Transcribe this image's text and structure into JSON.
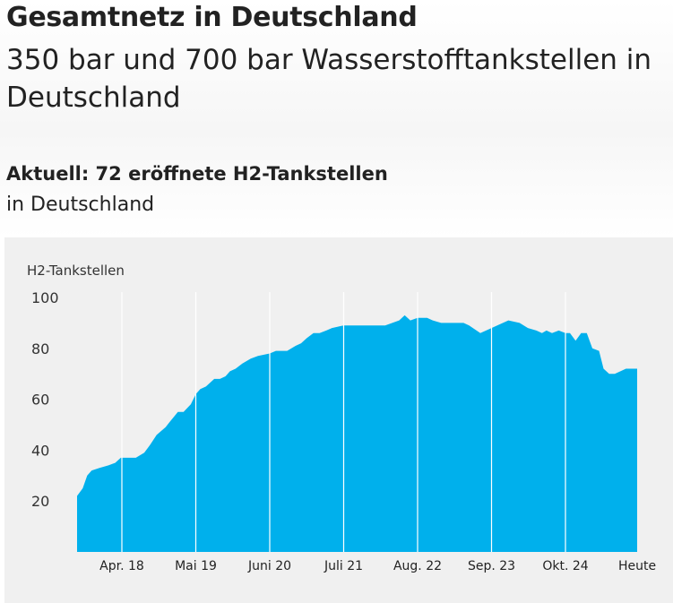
{
  "header": {
    "title": "Gesamtnetz in Deutschland",
    "subtitle": "350 bar und 700 bar Wasserstofftankstellen in Deutschland"
  },
  "stat": {
    "headline": "Aktuell: 72 eröffnete H2-Tankstellen",
    "sub": "in Deutschland"
  },
  "chart_data": {
    "type": "area",
    "ylabel": "H2-Tankstellen",
    "yticks": [
      20,
      40,
      60,
      80,
      100
    ],
    "ylim": [
      0,
      100
    ],
    "xlim": [
      0,
      100
    ],
    "categories": [
      "Apr. 18",
      "Mai 19",
      "Juni 20",
      "Juli 21",
      "Aug. 22",
      "Sep. 23",
      "Okt. 24",
      "Heute"
    ],
    "category_positions": [
      8.0,
      21.2,
      34.4,
      47.6,
      60.8,
      74.0,
      87.2,
      100
    ],
    "grid": "vertical",
    "color": "#00b0ec",
    "series": [
      {
        "x": [
          0,
          1.0,
          1.8,
          2.6,
          4.0,
          5.6,
          6.8,
          7.8,
          8.5,
          9.5,
          10.5,
          12.0,
          13.0,
          14.2,
          15.8,
          16.5,
          18.0,
          19.0,
          20.3,
          21.2,
          22.0,
          23.0,
          24.5,
          25.5,
          26.5,
          27.3,
          28.3,
          29.5,
          31.0,
          32.3,
          34.4,
          35.5,
          37.5,
          39.0,
          40.0,
          41.0,
          42.2,
          43.3,
          44.5,
          45.5,
          47.6,
          50.0,
          55.0,
          57.5,
          58.5,
          59.5,
          60.8,
          61.5,
          62.5,
          63.5,
          65.0,
          67.0,
          68.0,
          69.0,
          70.0,
          72.0,
          74.0,
          75.0,
          77.0,
          79.0,
          80.5,
          82.0,
          83.0,
          83.8,
          84.8,
          86.0,
          87.2,
          88.0,
          89.0,
          90.0,
          91.0,
          92.0,
          93.2,
          94.0,
          95.0,
          96.0,
          97.0,
          98.0,
          99.0,
          100
        ],
        "y": [
          22,
          25,
          30,
          32,
          33,
          34,
          35,
          37,
          37,
          37,
          37,
          39,
          42,
          46,
          49,
          51,
          55,
          55,
          58,
          62,
          64,
          65,
          68,
          68,
          69,
          71,
          72,
          74,
          76,
          77,
          78,
          79,
          79,
          81,
          82,
          84,
          86,
          86,
          87,
          88,
          89,
          89,
          89,
          91,
          93,
          91,
          92,
          92,
          92,
          91,
          90,
          90,
          90,
          90,
          89,
          86,
          88,
          89,
          91,
          90,
          88,
          87,
          86,
          87,
          86,
          87,
          86,
          86,
          83,
          86,
          86,
          80,
          79,
          72,
          70,
          70,
          71,
          72,
          72,
          72
        ]
      }
    ]
  }
}
